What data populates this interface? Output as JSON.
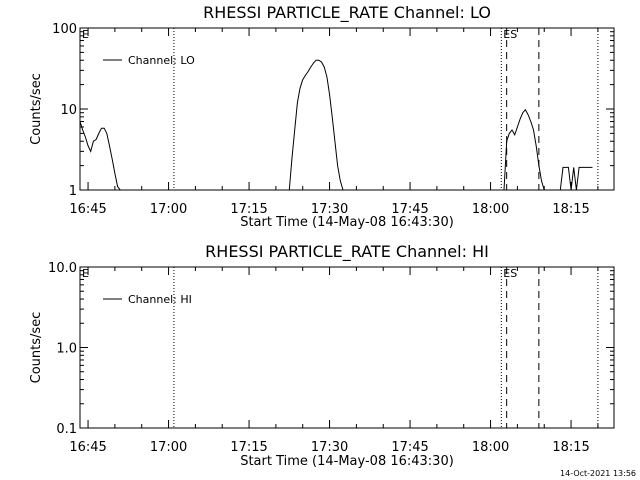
{
  "chart_data": [
    {
      "type": "line",
      "title": "RHESSI PARTICLE_RATE Channel: LO",
      "xlabel": "Start Time (14-May-08 16:43:30)",
      "ylabel": "Counts/sec",
      "y_scale": "log",
      "ylim": [
        1,
        100
      ],
      "xlim": [
        "16:43:30",
        "18:23:00"
      ],
      "x_ticks": [
        "16:45",
        "17:00",
        "17:15",
        "17:30",
        "17:45",
        "18:00",
        "18:15"
      ],
      "y_ticks": [
        "1",
        "10",
        "100"
      ],
      "grid": false,
      "legend_position": "top-left",
      "series": [
        {
          "name": "Channel: LO",
          "segments": [
            {
              "x": [
                "16:43:30",
                "16:44:00",
                "16:44:30",
                "16:45:00",
                "16:45:30",
                "16:46:00",
                "16:46:30",
                "16:47:00",
                "16:47:30",
                "16:48:00",
                "16:48:30",
                "16:49:00",
                "16:49:30",
                "16:50:00",
                "16:50:30",
                "16:51:00"
              ],
              "y": [
                7,
                5.5,
                4.5,
                3.5,
                3.0,
                4.0,
                4.2,
                5.0,
                5.8,
                5.8,
                5.0,
                3.5,
                2.4,
                1.6,
                1.1,
                1.0
              ]
            },
            {
              "x": [
                "17:22:30",
                "17:23:00",
                "17:23:30",
                "17:24:00",
                "17:24:30",
                "17:25:00",
                "17:25:30",
                "17:26:00",
                "17:26:30",
                "17:27:00",
                "17:27:30",
                "17:28:00",
                "17:28:30",
                "17:29:00",
                "17:29:30",
                "17:30:00",
                "17:30:30",
                "17:31:00",
                "17:31:30",
                "17:32:00",
                "17:32:30"
              ],
              "y": [
                1.0,
                2.5,
                5.5,
                12,
                18,
                23,
                26,
                29,
                33,
                37,
                40,
                40,
                38,
                33,
                25,
                15,
                8,
                4,
                2,
                1.3,
                1.0
              ]
            },
            {
              "x": [
                "18:02:30",
                "18:03:00",
                "18:03:30",
                "18:04:00",
                "18:04:30",
                "18:05:00",
                "18:05:30",
                "18:06:00",
                "18:06:30",
                "18:07:00",
                "18:07:30",
                "18:08:00",
                "18:08:30",
                "18:09:00",
                "18:09:30",
                "18:10:00"
              ],
              "y": [
                1.0,
                4.0,
                5.0,
                5.5,
                4.8,
                6.0,
                7.5,
                9.0,
                9.8,
                8.5,
                7.0,
                5.5,
                3.5,
                2.0,
                1.3,
                1.0
              ]
            },
            {
              "x": [
                "18:12:30",
                "18:13:00",
                "18:13:30",
                "18:14:00",
                "18:14:30",
                "18:15:00",
                "18:15:30",
                "18:16:00",
                "18:16:30",
                "18:17:00",
                "18:17:30",
                "18:18:00",
                "18:18:30",
                "18:19:00"
              ],
              "y": [
                1.0,
                1.0,
                1.9,
                1.9,
                1.9,
                1.0,
                1.9,
                1.0,
                1.9,
                1.9,
                1.9,
                1.9,
                1.9,
                1.9
              ]
            }
          ]
        }
      ],
      "vlines": [
        {
          "x": "17:01:00",
          "style": "dotted"
        },
        {
          "x": "18:02:00",
          "style": "dotted"
        },
        {
          "x": "18:03:00",
          "style": "dashed"
        },
        {
          "x": "18:09:00",
          "style": "dashed"
        },
        {
          "x": "18:20:00",
          "style": "dotted"
        }
      ],
      "annotations": [
        {
          "text": "E",
          "x": "16:43:30"
        },
        {
          "text": "ES",
          "x": "18:02:00"
        }
      ]
    },
    {
      "type": "line",
      "title": "RHESSI PARTICLE_RATE Channel: HI",
      "xlabel": "Start Time (14-May-08 16:43:30)",
      "ylabel": "Counts/sec",
      "y_scale": "log",
      "ylim": [
        0.1,
        10.0
      ],
      "xlim": [
        "16:43:30",
        "18:23:00"
      ],
      "x_ticks": [
        "16:45",
        "17:00",
        "17:15",
        "17:30",
        "17:45",
        "18:00",
        "18:15"
      ],
      "y_ticks": [
        "0.1",
        "1.0",
        "10.0"
      ],
      "grid": false,
      "legend_position": "top-left",
      "series": [
        {
          "name": "Channel: HI",
          "segments": []
        }
      ],
      "vlines": [
        {
          "x": "17:01:00",
          "style": "dotted"
        },
        {
          "x": "18:02:00",
          "style": "dotted"
        },
        {
          "x": "18:03:00",
          "style": "dashed"
        },
        {
          "x": "18:09:00",
          "style": "dashed"
        },
        {
          "x": "18:20:00",
          "style": "dotted"
        }
      ],
      "annotations": [
        {
          "text": "E",
          "x": "16:43:30"
        },
        {
          "text": "ES",
          "x": "18:02:00"
        }
      ]
    }
  ],
  "footer_timestamp": "14-Oct-2021 13:56"
}
